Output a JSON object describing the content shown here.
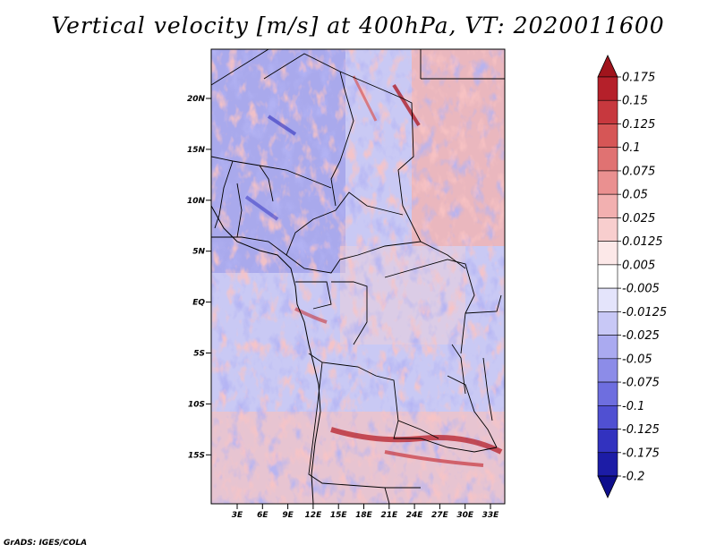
{
  "title": "Vertical velocity [m/s] at 400hPa, VT: 2020011600",
  "credit": "GrADS: IGES/COLA",
  "map": {
    "lat_labels": [
      "20N",
      "15N",
      "10N",
      "5N",
      "EQ",
      "5S",
      "10S",
      "15S"
    ],
    "lon_labels": [
      "3E",
      "6E",
      "9E",
      "12E",
      "15E",
      "18E",
      "21E",
      "24E",
      "27E",
      "30E",
      "33E"
    ]
  },
  "colorbar": {
    "levels": [
      "0.175",
      "0.15",
      "0.125",
      "0.1",
      "0.075",
      "0.05",
      "0.025",
      "0.0125",
      "0.005",
      "-0.005",
      "-0.0125",
      "-0.025",
      "-0.05",
      "-0.075",
      "-0.1",
      "-0.125",
      "-0.175",
      "-0.2"
    ],
    "colors": [
      "#a0141c",
      "#b5202a",
      "#c7383e",
      "#d65656",
      "#e07272",
      "#ea9090",
      "#f2b0b0",
      "#f8cece",
      "#fce8e8",
      "#ffffff",
      "#e4e4fb",
      "#c8c8f6",
      "#aaaaf0",
      "#8c8ce8",
      "#6e6edf",
      "#5050d2",
      "#3232bf",
      "#1c1ca6",
      "#0e0e8c"
    ]
  }
}
